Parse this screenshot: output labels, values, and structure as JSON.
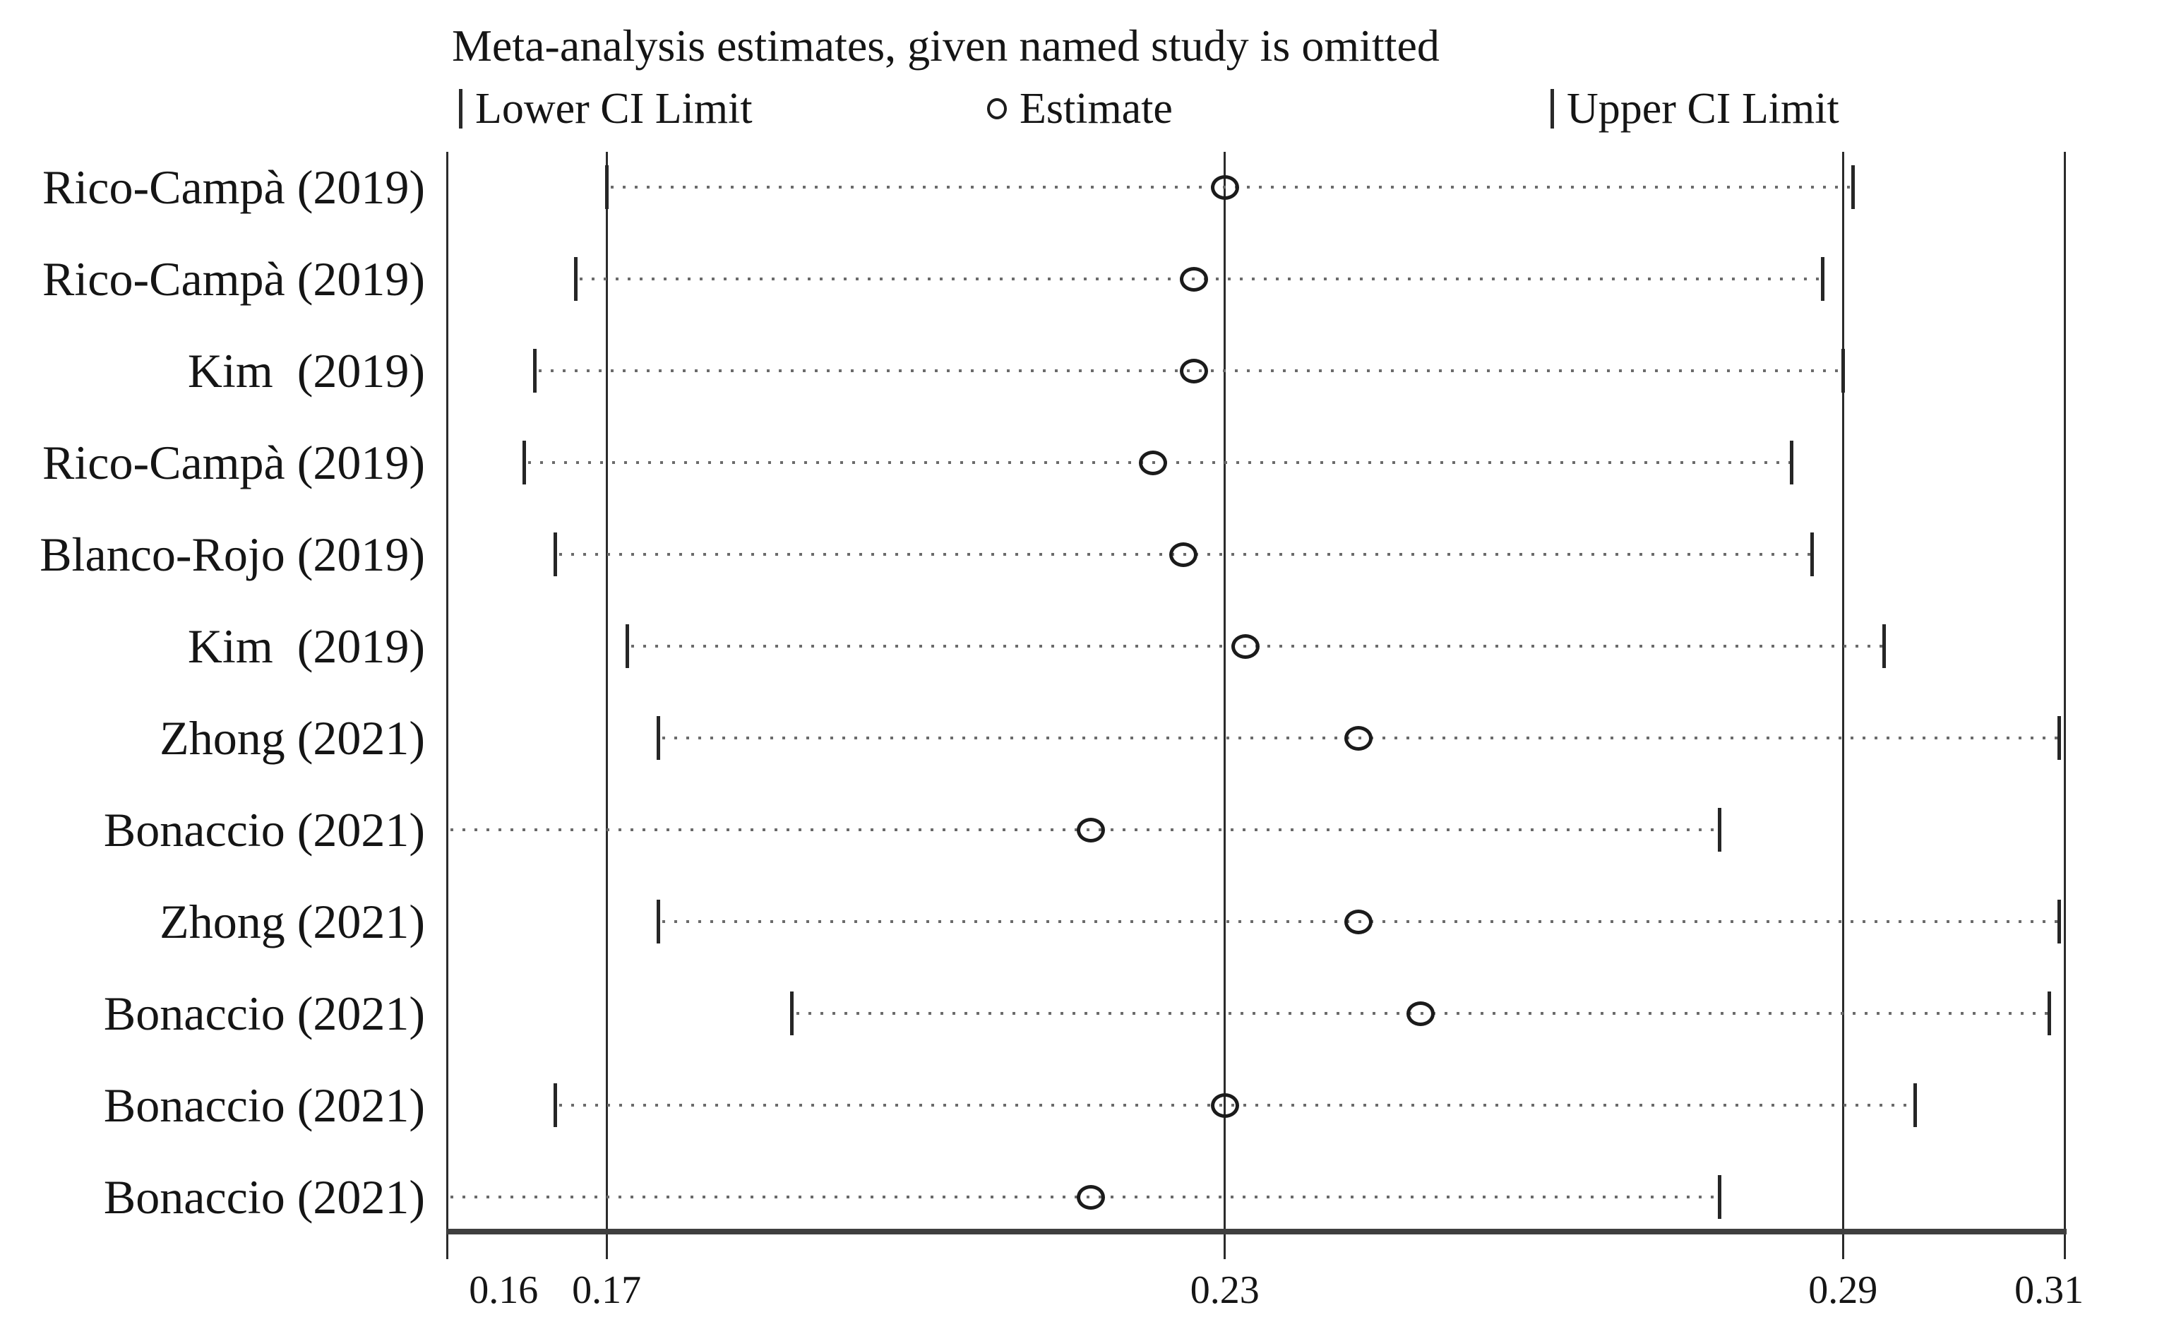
{
  "figure": {
    "title": "Meta-analysis estimates, given named study is omitted",
    "legend": {
      "lower_label": "Lower CI Limit",
      "estimate_label": "Estimate",
      "upper_label": "Upper CI Limit"
    }
  },
  "colors": {
    "background": "#ffffff",
    "text": "#151515",
    "ref_line": "#2b2b2b",
    "axis_line": "#3f3f3f",
    "dotted_line": "#6b6b6b",
    "marker": "#1b1b1b"
  },
  "chart_data": {
    "type": "scatter",
    "subtype": "meta-analysis-leave-one-out-sensitivity",
    "title": "Meta-analysis estimates, given named study is omitted",
    "xlabel": "",
    "ylabel": "",
    "grid": false,
    "legend_entries": [
      "Lower CI Limit",
      "Estimate",
      "Upper CI Limit"
    ],
    "legend_position": "top",
    "x_axis": {
      "tick_labels": [
        "0.16",
        "0.17",
        "0.23",
        "0.29",
        "0.31"
      ],
      "tick_values": [
        0.16,
        0.17,
        0.23,
        0.29,
        0.31
      ],
      "xlim": [
        0.1545,
        0.3115
      ],
      "ref_line_values": [
        0.17,
        0.23,
        0.29
      ],
      "ref_line_meaning": "overall lower CI limit, overall estimate, overall upper CI limit"
    },
    "studies": [
      {
        "label": "Rico-Campà (2019)",
        "lower": 0.17,
        "estimate": 0.23,
        "upper": 0.291,
        "lower_clipped": false
      },
      {
        "label": "Rico-Campà (2019)",
        "lower": 0.167,
        "estimate": 0.227,
        "upper": 0.288,
        "lower_clipped": false
      },
      {
        "label": "Kim  (2019)",
        "lower": 0.163,
        "estimate": 0.227,
        "upper": 0.29,
        "lower_clipped": false
      },
      {
        "label": "Rico-Campà (2019)",
        "lower": 0.162,
        "estimate": 0.223,
        "upper": 0.285,
        "lower_clipped": false
      },
      {
        "label": "Blanco-Rojo (2019)",
        "lower": 0.165,
        "estimate": 0.226,
        "upper": 0.287,
        "lower_clipped": false
      },
      {
        "label": "Kim  (2019)",
        "lower": 0.172,
        "estimate": 0.232,
        "upper": 0.294,
        "lower_clipped": false
      },
      {
        "label": "Zhong (2021)",
        "lower": 0.175,
        "estimate": 0.243,
        "upper": 0.311,
        "lower_clipped": false
      },
      {
        "label": "Bonaccio (2021)",
        "lower": null,
        "estimate": 0.217,
        "upper": 0.278,
        "lower_clipped": true
      },
      {
        "label": "Zhong (2021)",
        "lower": 0.175,
        "estimate": 0.243,
        "upper": 0.311,
        "lower_clipped": false
      },
      {
        "label": "Bonaccio (2021)",
        "lower": 0.188,
        "estimate": 0.249,
        "upper": 0.31,
        "lower_clipped": false
      },
      {
        "label": "Bonaccio (2021)",
        "lower": 0.165,
        "estimate": 0.23,
        "upper": 0.297,
        "lower_clipped": false
      },
      {
        "label": "Bonaccio (2021)",
        "lower": null,
        "estimate": 0.217,
        "upper": 0.278,
        "lower_clipped": true
      }
    ]
  }
}
